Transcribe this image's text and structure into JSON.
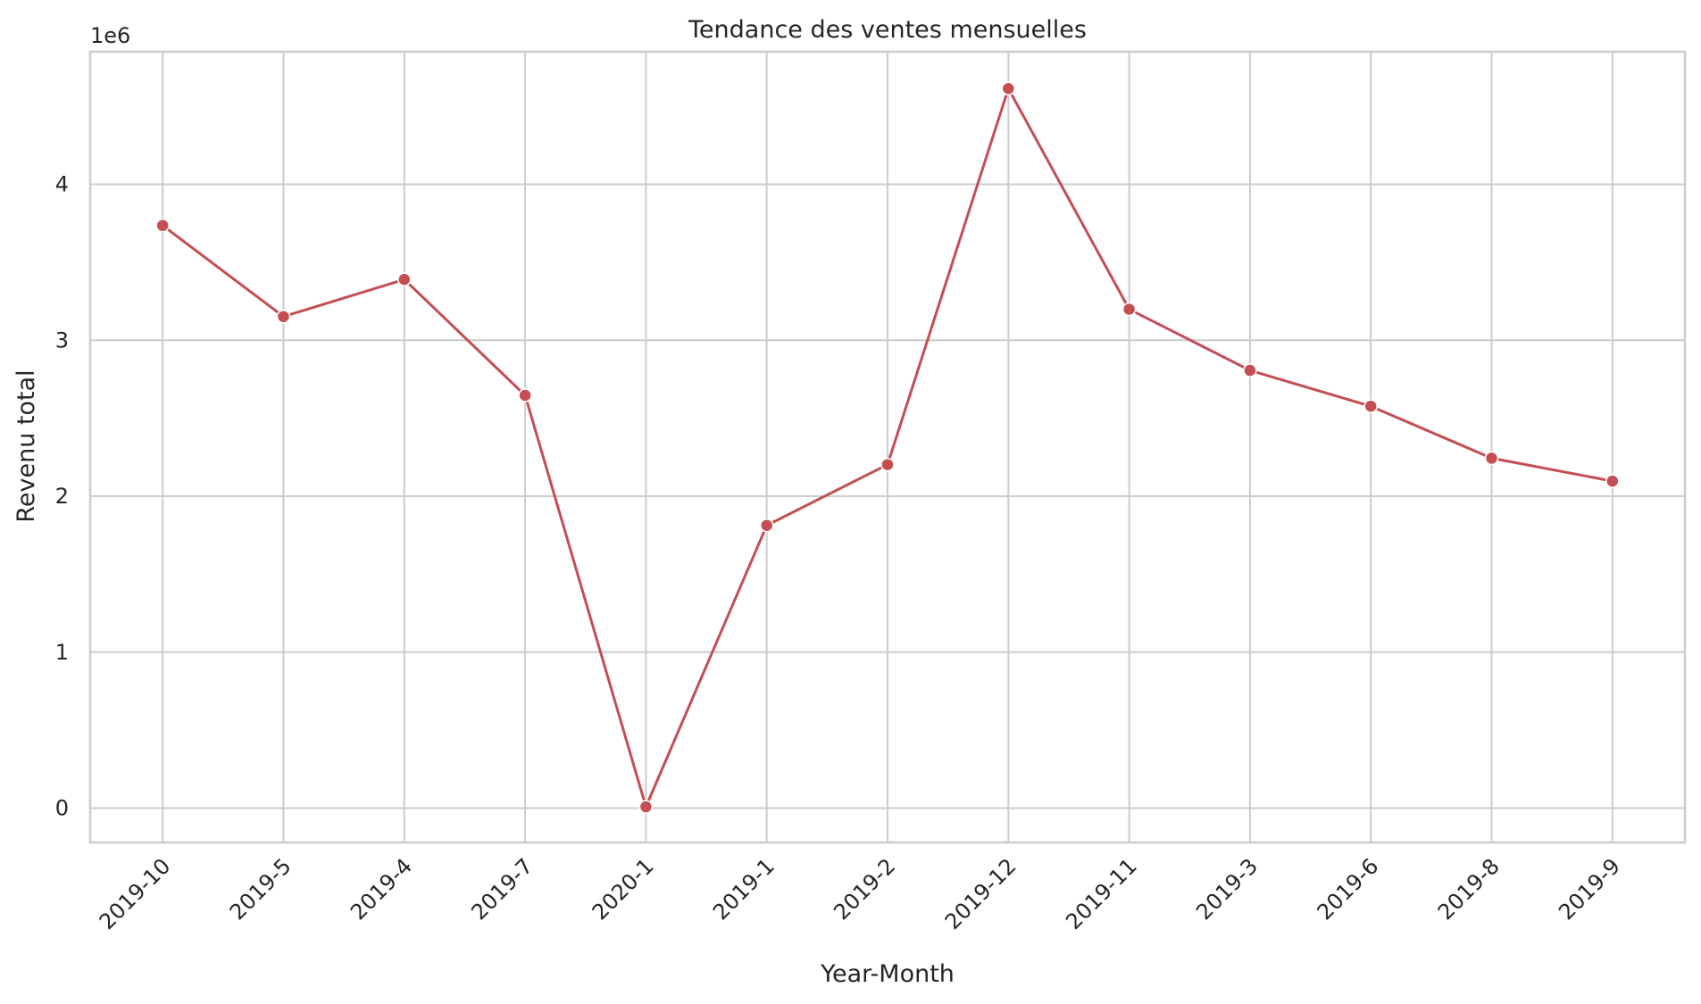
{
  "chart_data": {
    "type": "line",
    "title": "Tendance des ventes mensuelles",
    "xlabel": "Year-Month",
    "ylabel": "Revenu total",
    "y_offset_label": "1e6",
    "categories": [
      "2019-10",
      "2019-5",
      "2019-4",
      "2019-7",
      "2020-1",
      "2019-1",
      "2019-2",
      "2019-12",
      "2019-11",
      "2019-3",
      "2019-6",
      "2019-8",
      "2019-9"
    ],
    "series": [
      {
        "values": [
          3736000,
          3152000,
          3390000,
          2647000,
          8700,
          1813000,
          2203000,
          4614000,
          3199000,
          2807000,
          2577000,
          2244000,
          2097000
        ],
        "color": "#c44e52"
      }
    ],
    "yticks": [
      0,
      1,
      2,
      3,
      4
    ],
    "y_scale": 1000000,
    "ylim": [
      -220000,
      4850000
    ],
    "grid": true,
    "legend": "none"
  }
}
